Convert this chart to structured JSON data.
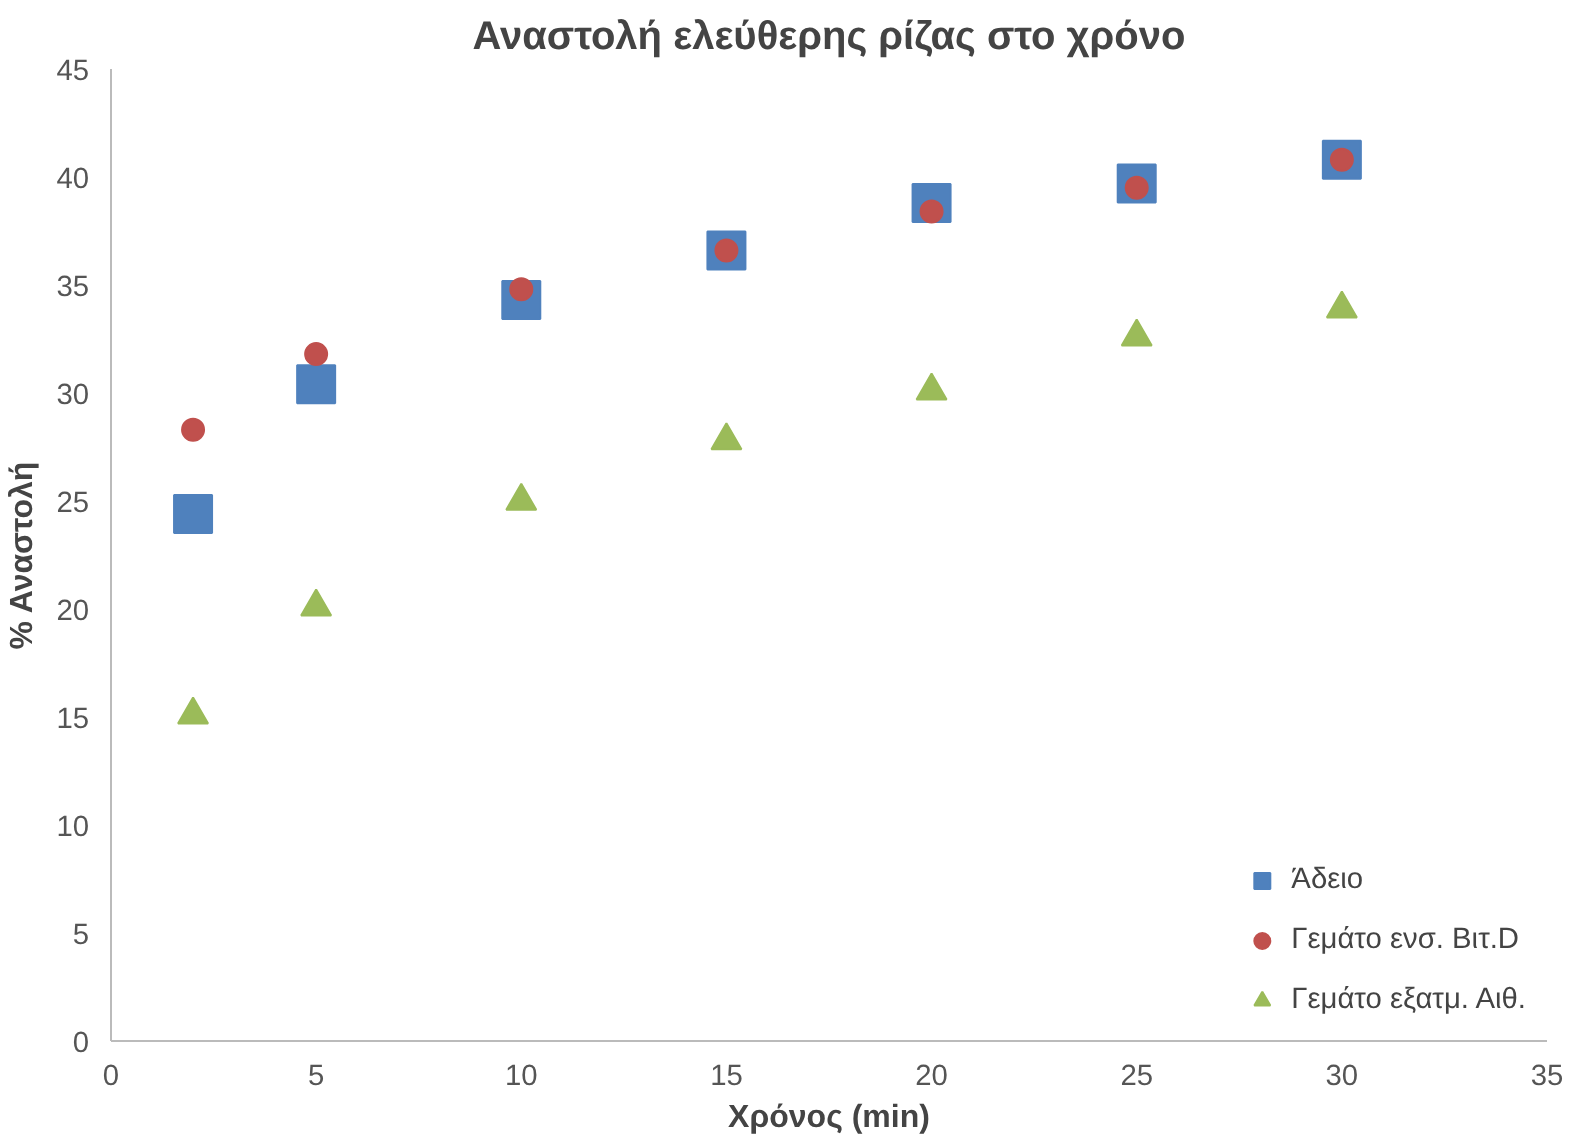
{
  "chart_data": {
    "type": "scatter",
    "title": "Αναστολή ελεύθερης ρίζας στο χρόνο",
    "xlabel": "Χρόνος (min)",
    "ylabel": "% Αναστολή",
    "x": [
      2,
      5,
      10,
      15,
      20,
      25,
      30
    ],
    "series": [
      {
        "name": "Άδειο",
        "color": "#4f81bd",
        "marker": "square",
        "values": [
          24.4,
          30.4,
          34.3,
          36.6,
          38.8,
          39.7,
          40.8
        ]
      },
      {
        "name": "Γεμάτο ενσ. Βιτ.D",
        "color": "#c0504d",
        "marker": "circle",
        "values": [
          28.3,
          31.8,
          34.8,
          36.6,
          38.4,
          39.5,
          40.8
        ]
      },
      {
        "name": "Γεμάτο εξατμ. Αιθ.",
        "color": "#9bbb59",
        "marker": "triangle",
        "values": [
          15.1,
          20.1,
          25.0,
          27.8,
          30.1,
          32.6,
          33.9
        ]
      }
    ],
    "xlim": [
      0,
      35
    ],
    "xticks": [
      0,
      5,
      10,
      15,
      20,
      25,
      30,
      35
    ],
    "ylim": [
      0,
      45
    ],
    "yticks": [
      0,
      5,
      10,
      15,
      20,
      25,
      30,
      35,
      40,
      45
    ],
    "grid": false,
    "legend": "bottom right"
  }
}
